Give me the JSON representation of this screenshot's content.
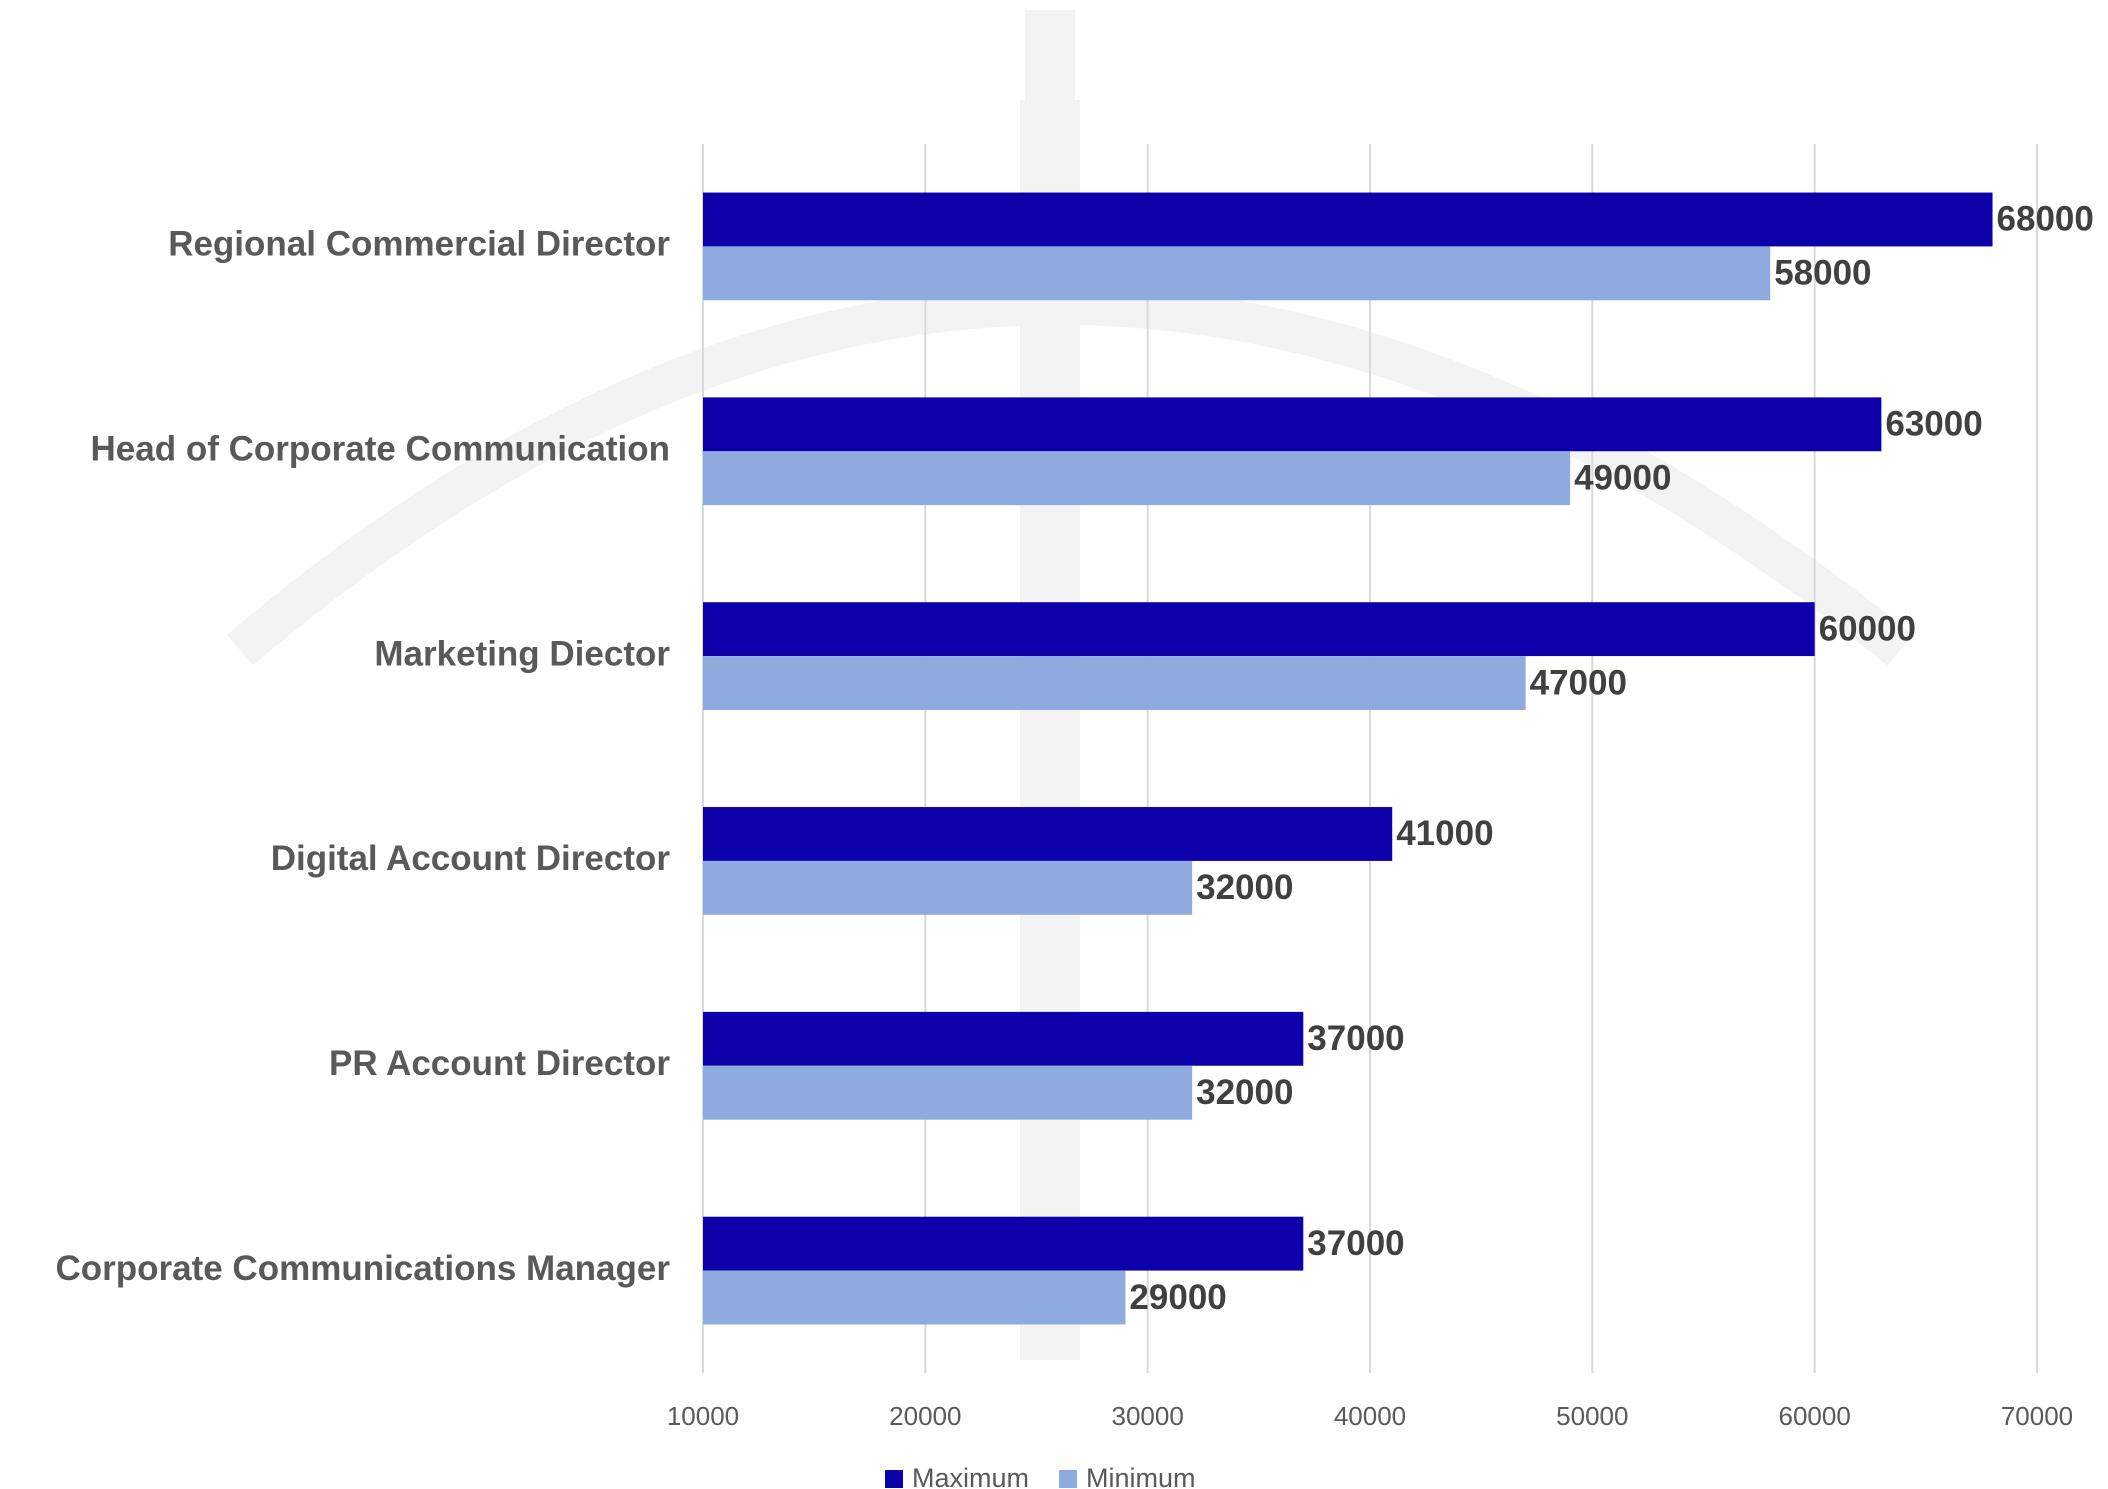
{
  "chart_data": {
    "type": "bar",
    "orientation": "horizontal",
    "categories": [
      "Regional Commercial Director",
      "Head of Corporate Communication",
      "Marketing Diector",
      "Digital Account Director",
      "PR Account Director",
      "Corporate Communications Manager"
    ],
    "series": [
      {
        "name": "Maximum",
        "color": "#0c00aa",
        "values": [
          68000,
          63000,
          60000,
          41000,
          37000,
          37000
        ]
      },
      {
        "name": "Minimum",
        "color": "#8eaadf",
        "values": [
          58000,
          49000,
          47000,
          32000,
          32000,
          29000
        ]
      }
    ],
    "xlim": [
      10000,
      70000
    ],
    "xticks": [
      10000,
      20000,
      30000,
      40000,
      50000,
      60000,
      70000
    ],
    "grid": true,
    "legend": "bottom"
  }
}
